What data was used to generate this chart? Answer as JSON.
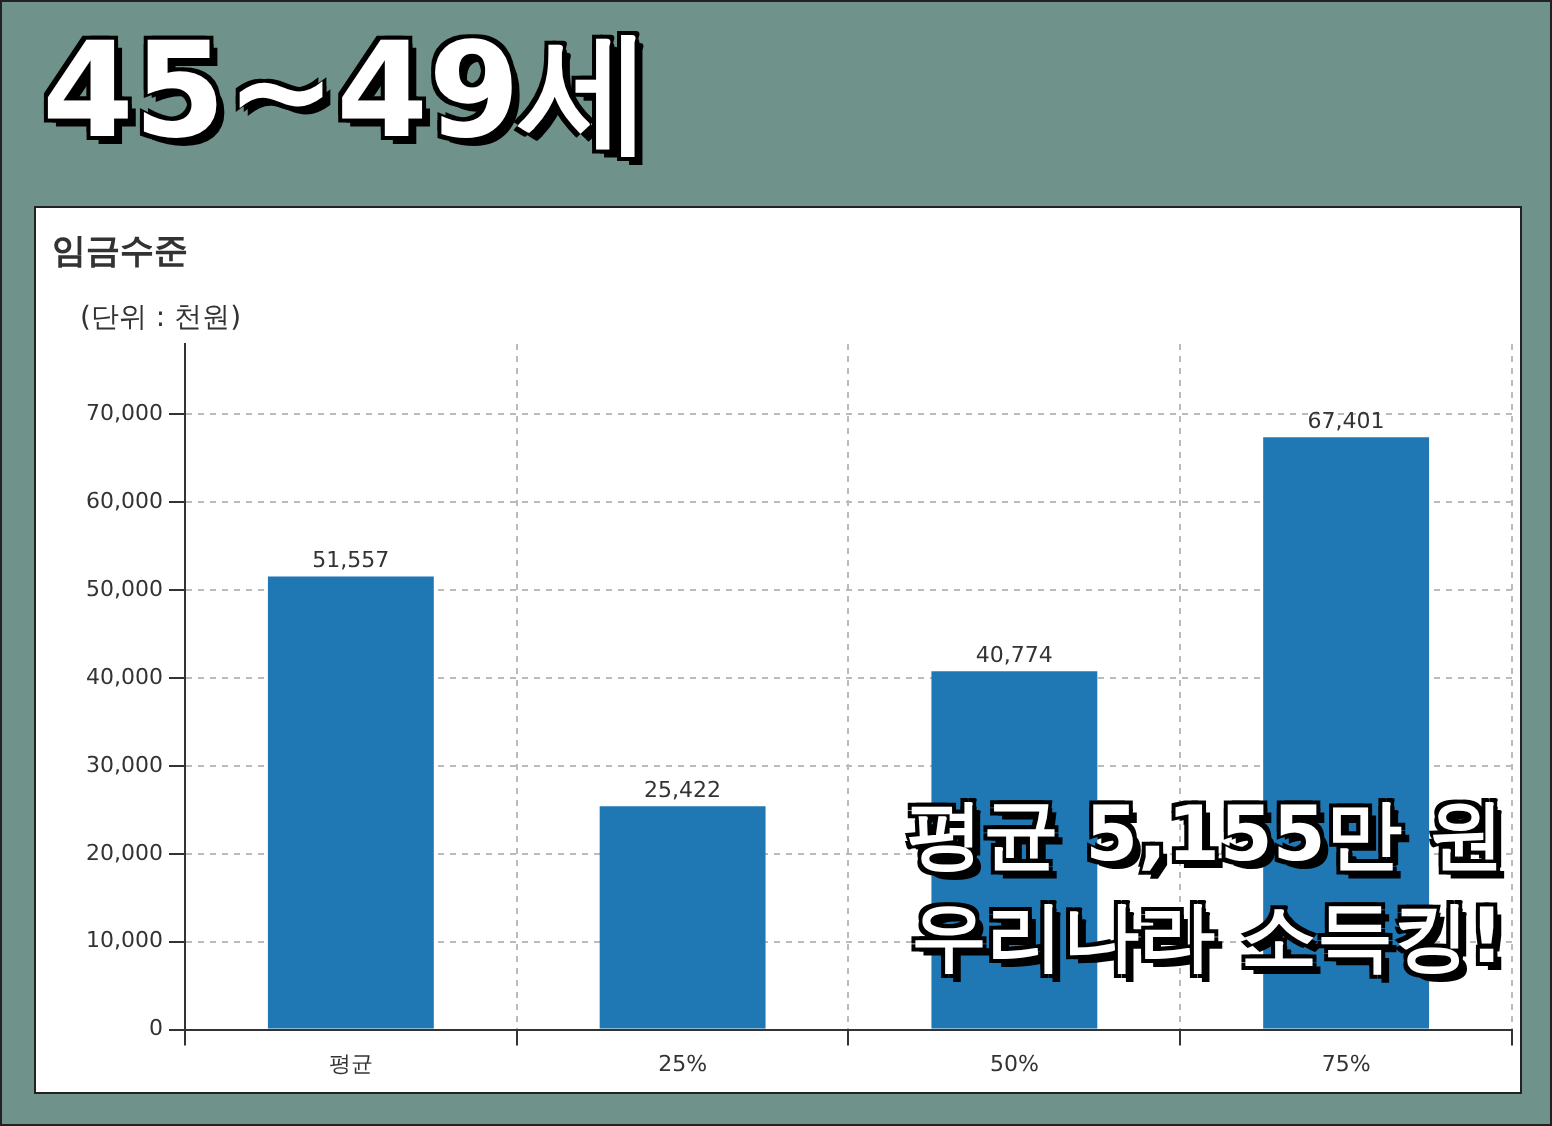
{
  "chart_data": {
    "type": "bar",
    "title": "45~49세",
    "subtitle": "임금수준",
    "ylabel": "(단위 : 천원)",
    "categories": [
      "평균",
      "25%",
      "50%",
      "75%"
    ],
    "values": [
      51557,
      25422,
      40774,
      67401
    ],
    "value_labels": [
      "51,557",
      "25,422",
      "40,774",
      "67,401"
    ],
    "color": "#1f77b4",
    "ylim": [
      0,
      78000
    ],
    "yticks": [
      0,
      {
        "value": 10000,
        "label": "10,000"
      },
      {
        "value": 20000,
        "label": "20,000"
      },
      {
        "value": 30000,
        "label": "30,000"
      },
      {
        "value": 40000,
        "label": "40,000"
      },
      {
        "value": 50000,
        "label": "50,000"
      },
      {
        "value": 60000,
        "label": "60,000"
      },
      {
        "value": 70000,
        "label": "70,000"
      }
    ],
    "grid": true,
    "annotations": [
      "평균 5,155만 원",
      "우리나라 소득킹!"
    ]
  }
}
